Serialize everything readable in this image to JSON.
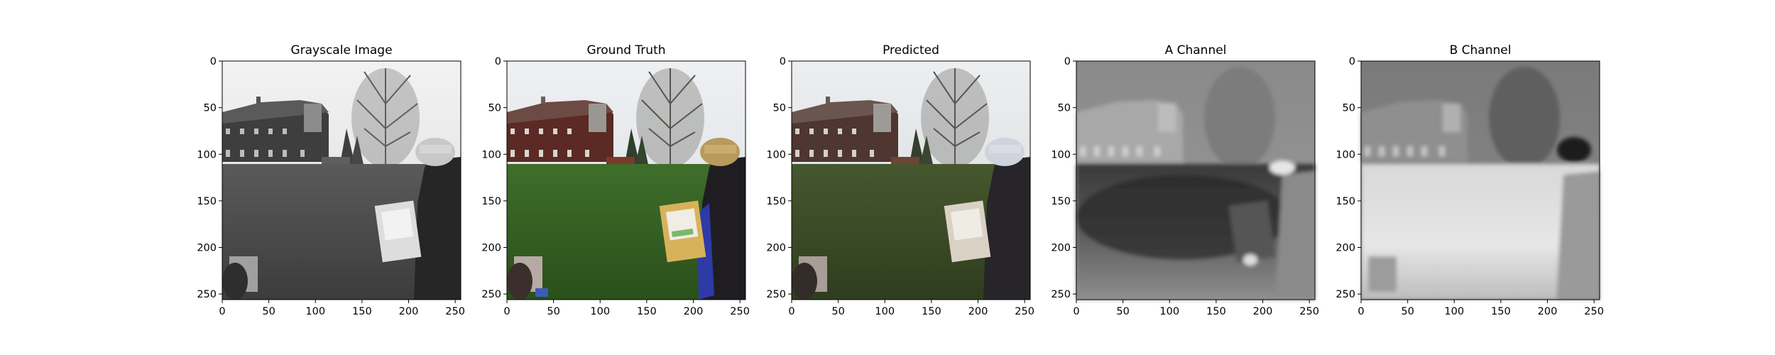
{
  "chart_data": [
    {
      "type": "image",
      "title": "Grayscale Image",
      "content": "grayscale photo: barn, bare tree, lawn, person with easel",
      "xlim": [
        0,
        256
      ],
      "ylim": [
        256,
        0
      ],
      "xticks": [
        0,
        50,
        100,
        150,
        200,
        250
      ],
      "yticks": [
        0,
        50,
        100,
        150,
        200,
        250
      ]
    },
    {
      "type": "image",
      "title": "Ground Truth",
      "content": "color photo: red barn, green lawn, person with yellow hat and blue sleeve",
      "xlim": [
        0,
        256
      ],
      "ylim": [
        256,
        0
      ],
      "xticks": [
        0,
        50,
        100,
        150,
        200,
        250
      ],
      "yticks": [
        0,
        50,
        100,
        150,
        200,
        250
      ]
    },
    {
      "type": "image",
      "title": "Predicted",
      "content": "colorized prediction: brownish barn, dull green lawn, pale person",
      "xlim": [
        0,
        256
      ],
      "ylim": [
        256,
        0
      ],
      "xticks": [
        0,
        50,
        100,
        150,
        200,
        250
      ],
      "yticks": [
        0,
        50,
        100,
        150,
        200,
        250
      ]
    },
    {
      "type": "image",
      "title": "A Channel",
      "content": "blurry grayscale A channel map, dark lawn band",
      "xlim": [
        0,
        256
      ],
      "ylim": [
        256,
        0
      ],
      "xticks": [
        0,
        50,
        100,
        150,
        200,
        250
      ],
      "yticks": [
        0,
        50,
        100,
        150,
        200,
        250
      ]
    },
    {
      "type": "image",
      "title": "B Channel",
      "content": "blurry grayscale B channel map, bright lawn band",
      "xlim": [
        0,
        256
      ],
      "ylim": [
        256,
        0
      ],
      "xticks": [
        0,
        50,
        100,
        150,
        200,
        250
      ],
      "yticks": [
        0,
        50,
        100,
        150,
        200,
        250
      ]
    }
  ]
}
